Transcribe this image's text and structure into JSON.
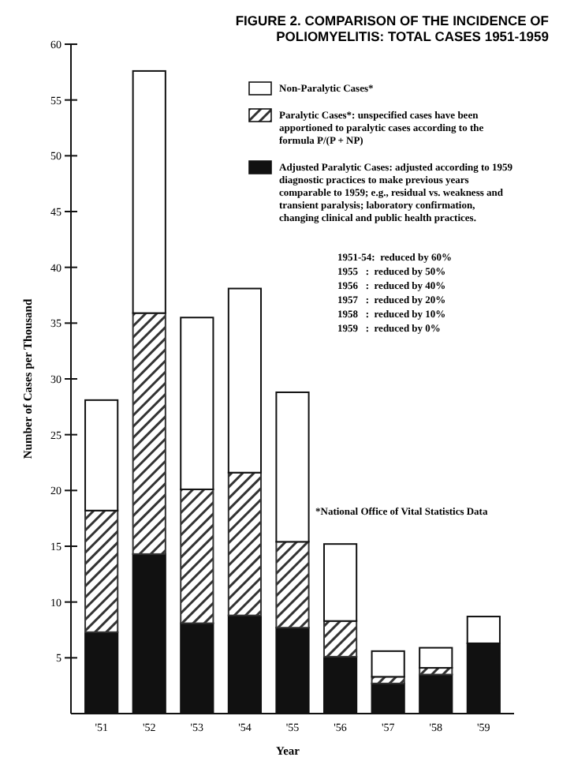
{
  "chart_data": {
    "type": "bar",
    "stacked": true,
    "title": "FIGURE 2. COMPARISON OF THE INCIDENCE OF POLIOMYELITIS: TOTAL CASES 1951-1959",
    "xlabel": "Year",
    "ylabel": "Number of Cases per Thousand",
    "categories": [
      "'51",
      "'52",
      "'53",
      "'54",
      "'55",
      "'56",
      "'57",
      "'58",
      "'59"
    ],
    "series": [
      {
        "name": "Adjusted Paralytic Cases: adjusted according to 1959 diagnostic practices to make previous years comparable to 1959; e.g., residual vs. weakness and transient paralysis; laboratory confirmation, changing clinical and public health practices.",
        "color": "#111111",
        "values": [
          7.3,
          14.3,
          8.1,
          8.8,
          7.7,
          5.1,
          2.7,
          3.5,
          6.3
        ]
      },
      {
        "name": "Paralytic Cases*: unspecified cases have been apportioned to paralytic cases according to the formula P/(P + NP)",
        "color": "#333333",
        "values": [
          10.9,
          21.6,
          12.0,
          12.8,
          7.7,
          3.2,
          0.6,
          0.6,
          0
        ]
      },
      {
        "name": "Non-Paralytic Cases*",
        "color": "#ffffff",
        "values": [
          9.9,
          21.7,
          15.4,
          16.5,
          13.4,
          6.9,
          2.3,
          1.8,
          2.4
        ]
      }
    ],
    "ylim": [
      0,
      60
    ],
    "yticks": [
      5,
      10,
      15,
      20,
      25,
      30,
      35,
      40,
      45,
      50,
      55,
      60
    ],
    "legend": "top right",
    "grid": false,
    "annotations": [
      "1951-54:  reduced by 60%",
      "1955   :  reduced by 50%",
      "1956   :  reduced by 40%",
      "1957   :  reduced by 20%",
      "1958   :  reduced by 10%",
      "1959   :  reduced by 0%",
      "*National Office of Vital Statistics Data"
    ]
  }
}
